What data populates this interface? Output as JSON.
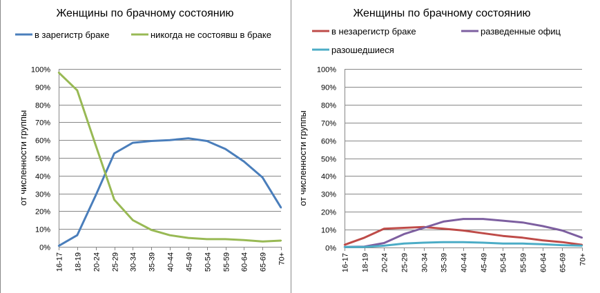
{
  "chart_data": [
    {
      "type": "line",
      "title": "Женщины по брачному состоянию",
      "ylabel": "от численности группы",
      "xlabel": "",
      "categories": [
        "16-17",
        "18-19",
        "20-24",
        "25-29",
        "30-34",
        "35-39",
        "40-44",
        "45-49",
        "50-54",
        "55-59",
        "60-64",
        "65-69",
        "70+"
      ],
      "ylim": [
        0,
        100
      ],
      "yticks": [
        "0%",
        "10%",
        "20%",
        "30%",
        "40%",
        "50%",
        "60%",
        "70%",
        "80%",
        "90%",
        "100%"
      ],
      "grid": true,
      "legend_position": "top",
      "series": [
        {
          "name": "в зарегистр браке",
          "color": "#4a7ebb",
          "values": [
            0.5,
            6.5,
            29,
            52.5,
            58.5,
            59.5,
            60,
            61,
            59.5,
            55,
            48,
            39,
            22
          ]
        },
        {
          "name": "никогда не состоявш в браке",
          "color": "#98b954",
          "values": [
            98,
            88,
            57,
            26.5,
            15,
            9.5,
            6.5,
            5,
            4.3,
            4.3,
            3.8,
            3,
            3.5
          ]
        }
      ]
    },
    {
      "type": "line",
      "title": "Женщины по брачному состоянию",
      "ylabel": "от численности группы",
      "xlabel": "",
      "categories": [
        "16-17",
        "18-19",
        "20-24",
        "25-29",
        "30-34",
        "35-39",
        "40-44",
        "45-49",
        "50-54",
        "55-59",
        "60-64",
        "65-69",
        "70+"
      ],
      "ylim": [
        0,
        100
      ],
      "yticks": [
        "0%",
        "10%",
        "20%",
        "30%",
        "40%",
        "50%",
        "60%",
        "70%",
        "80%",
        "90%",
        "100%"
      ],
      "grid": true,
      "legend_position": "top",
      "series": [
        {
          "name": "в незарегистр браке",
          "color": "#be4b48",
          "values": [
            1.5,
            5.5,
            10.5,
            11,
            11.5,
            10.5,
            9.5,
            8,
            6.5,
            5.5,
            4,
            3,
            1.5
          ]
        },
        {
          "name": "разведенные офиц",
          "color": "#7d5fa0",
          "values": [
            0.3,
            0.5,
            2.5,
            7.5,
            11,
            14.5,
            16,
            16,
            15,
            14,
            12,
            9.5,
            5.5
          ]
        },
        {
          "name": "разошедшиеся",
          "color": "#4bacc6",
          "values": [
            0.3,
            0.3,
            1,
            2.2,
            2.7,
            3,
            3,
            2.7,
            2.2,
            2.2,
            1.8,
            1.3,
            1
          ]
        }
      ]
    }
  ]
}
